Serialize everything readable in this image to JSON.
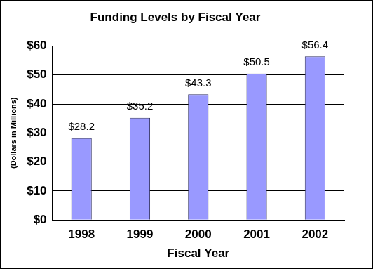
{
  "chart_data": {
    "type": "bar",
    "title": "Funding Levels by Fiscal Year",
    "x_label": "Fiscal Year",
    "y_label": "(Dollars in Millions)",
    "categories": [
      "1998",
      "1999",
      "2000",
      "2001",
      "2002"
    ],
    "values": [
      28.2,
      35.2,
      43.3,
      50.5,
      56.4
    ],
    "value_labels": [
      "$28.2",
      "$35.2",
      "$43.3",
      "$50.5",
      "$56.4"
    ],
    "data_labels": true,
    "color": "#9999ff",
    "ylim": [
      0,
      60
    ],
    "yticks": [
      {
        "value": 0,
        "label": "$0"
      },
      {
        "value": 10,
        "label": "$10"
      },
      {
        "value": 20,
        "label": "$20"
      },
      {
        "value": 30,
        "label": "$30"
      },
      {
        "value": 40,
        "label": "$40"
      },
      {
        "value": 50,
        "label": "$50"
      },
      {
        "value": 60,
        "label": "$60"
      }
    ],
    "grid": true
  }
}
